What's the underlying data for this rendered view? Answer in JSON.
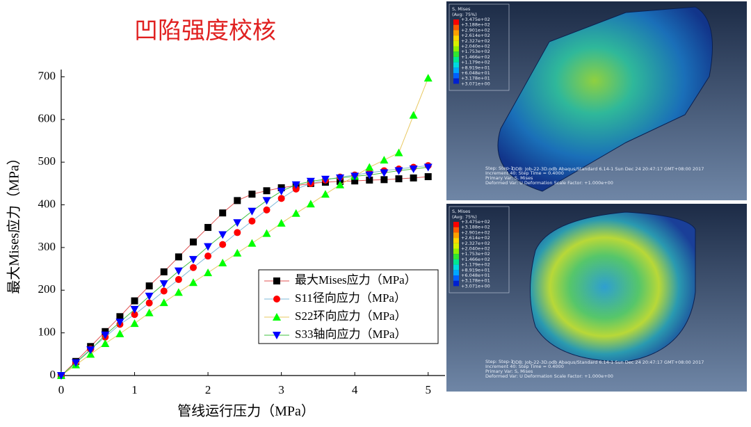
{
  "title": "凹陷强度校核",
  "chart_data": {
    "type": "line",
    "xlabel": "管线运行压力（MPa）",
    "ylabel": "最大Mises应力（MPa）",
    "x": [
      0,
      0.2,
      0.4,
      0.6,
      0.8,
      1.0,
      1.2,
      1.4,
      1.6,
      1.8,
      2.0,
      2.2,
      2.4,
      2.6,
      2.8,
      3.0,
      3.2,
      3.4,
      3.6,
      3.8,
      4.0,
      4.2,
      4.4,
      4.6,
      4.8,
      5.0
    ],
    "xlim": [
      0,
      5.23
    ],
    "xticks": [
      0,
      1,
      2,
      3,
      4,
      5
    ],
    "ylim": [
      0,
      717
    ],
    "yticks": [
      0,
      100,
      200,
      300,
      400,
      500,
      600,
      700
    ],
    "series": [
      {
        "name": "最大Mises应力（MPa）",
        "color": "#000000",
        "line_color": "#e05050",
        "marker": "square",
        "values": [
          0,
          33,
          68,
          103,
          138,
          175,
          210,
          243,
          278,
          313,
          347,
          381,
          410,
          425,
          433,
          440,
          445,
          450,
          453,
          455,
          456,
          458,
          459,
          461,
          463,
          466
        ]
      },
      {
        "name": "S11径向应力（MPa）",
        "color": "#ff0000",
        "line_color": "#7fb8d8",
        "marker": "circle",
        "values": [
          0,
          30,
          62,
          90,
          120,
          143,
          170,
          198,
          225,
          253,
          280,
          307,
          335,
          362,
          388,
          415,
          437,
          450,
          458,
          465,
          470,
          475,
          480,
          484,
          488,
          492
        ]
      },
      {
        "name": "S22环向应力（MPa）",
        "color": "#00ff00",
        "line_color": "#e8c860",
        "marker": "triangle-up",
        "values": [
          0,
          25,
          50,
          75,
          98,
          122,
          147,
          171,
          195,
          218,
          241,
          264,
          287,
          310,
          333,
          357,
          380,
          402,
          425,
          447,
          467,
          488,
          505,
          522,
          610,
          697
        ]
      },
      {
        "name": "S33轴向应力（MPa）",
        "color": "#0000ff",
        "line_color": "#40c040",
        "marker": "triangle-down",
        "values": [
          0,
          30,
          60,
          95,
          125,
          155,
          186,
          215,
          245,
          272,
          302,
          330,
          358,
          385,
          410,
          432,
          447,
          455,
          460,
          463,
          467,
          470,
          475,
          480,
          484,
          488
        ]
      }
    ]
  },
  "fea_panel": {
    "legend_title": "S, Mises",
    "legend_avg": "(Avg: 75%)",
    "legend_values": [
      "+3.475e+02",
      "+3.188e+02",
      "+2.901e+02",
      "+2.614e+02",
      "+2.327e+02",
      "+2.040e+02",
      "+1.753e+02",
      "+1.466e+02",
      "+1.179e+02",
      "+8.919e+01",
      "+6.048e+01",
      "+3.178e+01",
      "+3.071e+00"
    ],
    "info": [
      "ODB: Job-22-3D.odb    Abaqus/Standard 6.14-1    Sun Dec 24 20:47:17 GMT+08:00 2017",
      "Step: Step-1",
      "Increment    40: Step Time =    0.4000",
      "Primary Var: S, Mises",
      "Deformed Var: U   Deformation Scale Factor: +1.000e+00"
    ]
  }
}
